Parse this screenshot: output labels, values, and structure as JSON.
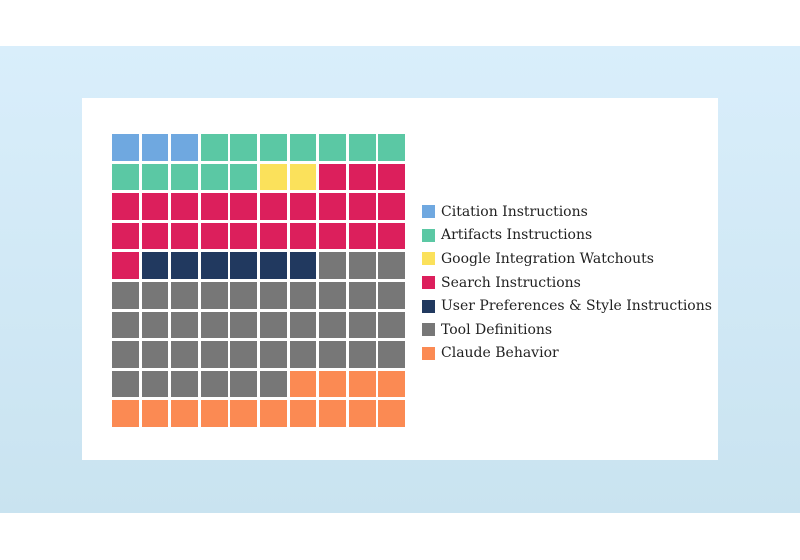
{
  "chart_data": {
    "type": "waffle",
    "title": "",
    "grid": {
      "rows": 10,
      "cols": 10
    },
    "series": [
      {
        "name": "Citation Instructions",
        "value": 3,
        "color": "#6fa8e0"
      },
      {
        "name": "Artifacts Instructions",
        "value": 12,
        "color": "#5bc8a4"
      },
      {
        "name": "Google Integration Watchouts",
        "value": 2,
        "color": "#fbe15b"
      },
      {
        "name": "Search Instructions",
        "value": 24,
        "color": "#dc1f5c"
      },
      {
        "name": "User Preferences & Style Instructions",
        "value": 6,
        "color": "#21395f"
      },
      {
        "name": "Tool Definitions",
        "value": 39,
        "color": "#777777"
      },
      {
        "name": "Claude Behavior",
        "value": 14,
        "color": "#fb8a53"
      }
    ],
    "legend_position": "right"
  }
}
